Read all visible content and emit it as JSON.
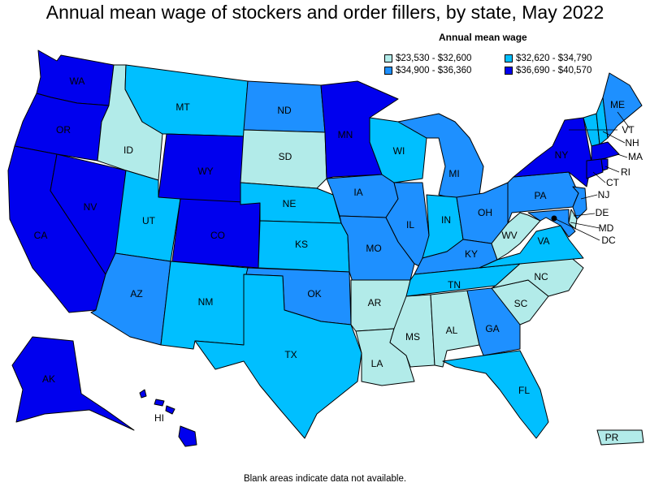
{
  "title": "Annual mean wage of stockers and order fillers, by state, May 2022",
  "legend": {
    "title": "Annual mean wage",
    "bins": [
      {
        "label": "$23,530 - $32,600",
        "color": "#b2ebe9"
      },
      {
        "label": "$32,620 - $34,790",
        "color": "#00bfff"
      },
      {
        "label": "$34,900 - $36,360",
        "color": "#1e90ff"
      },
      {
        "label": "$36,690 - $40,570",
        "color": "#0000ee"
      }
    ]
  },
  "footnote": "Blank areas indicate data not available.",
  "states": {
    "WA": {
      "label": "WA",
      "bin": 3
    },
    "OR": {
      "label": "OR",
      "bin": 3
    },
    "CA": {
      "label": "CA",
      "bin": 3
    },
    "NV": {
      "label": "NV",
      "bin": 3
    },
    "ID": {
      "label": "ID",
      "bin": 0
    },
    "MT": {
      "label": "MT",
      "bin": 1
    },
    "WY": {
      "label": "WY",
      "bin": 3
    },
    "UT": {
      "label": "UT",
      "bin": 1
    },
    "AZ": {
      "label": "AZ",
      "bin": 2
    },
    "CO": {
      "label": "CO",
      "bin": 3
    },
    "NM": {
      "label": "NM",
      "bin": 1
    },
    "ND": {
      "label": "ND",
      "bin": 2
    },
    "SD": {
      "label": "SD",
      "bin": 0
    },
    "NE": {
      "label": "NE",
      "bin": 1
    },
    "KS": {
      "label": "KS",
      "bin": 1
    },
    "OK": {
      "label": "OK",
      "bin": 2
    },
    "TX": {
      "label": "TX",
      "bin": 1
    },
    "MN": {
      "label": "MN",
      "bin": 3
    },
    "IA": {
      "label": "IA",
      "bin": 2
    },
    "MO": {
      "label": "MO",
      "bin": 2
    },
    "AR": {
      "label": "AR",
      "bin": 0
    },
    "LA": {
      "label": "LA",
      "bin": 0
    },
    "WI": {
      "label": "WI",
      "bin": 1
    },
    "IL": {
      "label": "IL",
      "bin": 2
    },
    "MI": {
      "label": "MI",
      "bin": 2
    },
    "IN": {
      "label": "IN",
      "bin": 1
    },
    "OH": {
      "label": "OH",
      "bin": 2
    },
    "KY": {
      "label": "KY",
      "bin": 2
    },
    "TN": {
      "label": "TN",
      "bin": 1
    },
    "MS": {
      "label": "MS",
      "bin": 0
    },
    "AL": {
      "label": "AL",
      "bin": 0
    },
    "GA": {
      "label": "GA",
      "bin": 2
    },
    "FL": {
      "label": "FL",
      "bin": 1
    },
    "SC": {
      "label": "SC",
      "bin": 0
    },
    "NC": {
      "label": "NC",
      "bin": 0
    },
    "VA": {
      "label": "VA",
      "bin": 1
    },
    "WV": {
      "label": "WV",
      "bin": 0
    },
    "PA": {
      "label": "PA",
      "bin": 2
    },
    "NY": {
      "label": "NY",
      "bin": 3
    },
    "ME": {
      "label": "ME",
      "bin": 2
    },
    "VT": {
      "label": "VT",
      "bin": 1
    },
    "NH": {
      "label": "NH",
      "bin": 1
    },
    "MA": {
      "label": "MA",
      "bin": 3
    },
    "RI": {
      "label": "RI",
      "bin": 3
    },
    "CT": {
      "label": "CT",
      "bin": 3
    },
    "NJ": {
      "label": "NJ",
      "bin": 2
    },
    "DE": {
      "label": "DE",
      "bin": 0
    },
    "MD": {
      "label": "MD",
      "bin": 2
    },
    "DC": {
      "label": "DC",
      "bin": 0
    },
    "AK": {
      "label": "AK",
      "bin": 3
    },
    "HI": {
      "label": "HI",
      "bin": 3
    },
    "PR": {
      "label": "PR",
      "bin": 0
    }
  }
}
